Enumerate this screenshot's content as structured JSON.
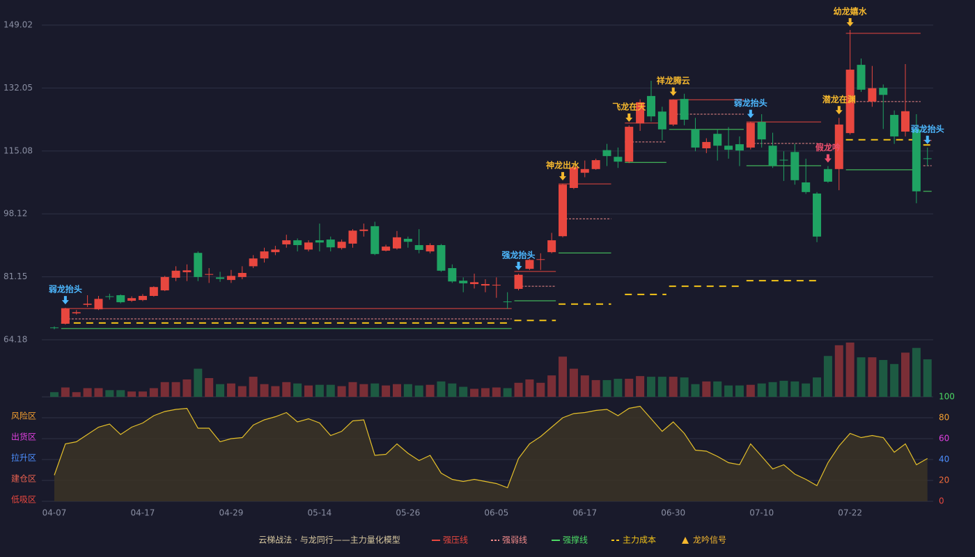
{
  "chart_data": {
    "type": "candlestick",
    "categories": [
      "04-07",
      null,
      null,
      null,
      null,
      null,
      null,
      null,
      "04-17",
      null,
      null,
      null,
      null,
      null,
      null,
      null,
      "04-29",
      null,
      null,
      null,
      null,
      null,
      null,
      null,
      "05-14",
      null,
      null,
      null,
      null,
      null,
      null,
      null,
      "05-26",
      null,
      null,
      null,
      null,
      null,
      null,
      null,
      "06-05",
      null,
      null,
      null,
      null,
      null,
      null,
      null,
      "06-17",
      null,
      null,
      null,
      null,
      null,
      null,
      null,
      "06-30",
      null,
      null,
      null,
      null,
      null,
      null,
      null,
      "07-10",
      null,
      null,
      null,
      null,
      null,
      null,
      null,
      "07-22",
      null,
      null,
      null,
      null,
      null,
      null,
      null
    ],
    "ylim": [
      64.18,
      149.02
    ],
    "yticks": [
      64.18,
      81.15,
      98.12,
      115.08,
      132.05,
      149.02
    ],
    "grid": true,
    "up_color": "#e8473f",
    "down_color": "#1fa363",
    "open": [
      67.5,
      68.5,
      71.3,
      73.6,
      72.4,
      75.9,
      76.2,
      74.7,
      74.9,
      76.0,
      77.5,
      80.9,
      82.4,
      87.6,
      81.7,
      81.0,
      80.3,
      81.1,
      84.0,
      86.1,
      87.8,
      89.9,
      91.0,
      88.5,
      91.0,
      91.2,
      88.9,
      90.1,
      93.5,
      94.8,
      88.2,
      88.8,
      91.4,
      89.7,
      88.0,
      89.7,
      83.5,
      80.1,
      79.2,
      78.8,
      78.9,
      74.5,
      77.9,
      83.3,
      85.8,
      87.8,
      92.1,
      105.1,
      109.2,
      110.2,
      115.3,
      113.5,
      112.2,
      122.5,
      129.9,
      125.7,
      122.2,
      129.1,
      120.9,
      115.8,
      119.7,
      116.5,
      116.9,
      116.0,
      122.9,
      116.5,
      112.7,
      114.8,
      106.6,
      103.6,
      110.2,
      110.2,
      119.9,
      138.3,
      128.4,
      132.1,
      124.8,
      120.3,
      120.9,
      113.1
    ],
    "high": [
      67.8,
      72.8,
      72.2,
      76.2,
      76.0,
      76.6,
      76.4,
      75.9,
      76.5,
      78.6,
      81.4,
      84.0,
      84.5,
      88.0,
      83.5,
      82.5,
      83.0,
      84.0,
      87.0,
      89.0,
      89.5,
      92.5,
      91.5,
      91.0,
      95.5,
      92.0,
      91.2,
      94.0,
      95.5,
      96.0,
      89.8,
      93.5,
      92.0,
      94.0,
      90.2,
      90.0,
      84.5,
      81.0,
      82.0,
      80.5,
      81.0,
      77.0,
      82.0,
      86.0,
      87.5,
      93.0,
      106.2,
      111.0,
      112.5,
      113.0,
      117.0,
      116.0,
      122.0,
      129.0,
      134.0,
      127.0,
      129.0,
      130.5,
      124.0,
      118.5,
      121.0,
      121.5,
      119.0,
      123.0,
      125.0,
      120.0,
      115.0,
      117.0,
      113.0,
      104.0,
      111.0,
      124.0,
      147.7,
      140.0,
      138.0,
      133.0,
      126.0,
      138.5,
      125.0,
      116.0
    ],
    "low": [
      67.0,
      68.3,
      71.0,
      73.0,
      72.2,
      75.0,
      74.0,
      74.4,
      74.6,
      75.8,
      77.3,
      80.0,
      80.0,
      80.0,
      79.5,
      79.8,
      79.5,
      80.5,
      83.5,
      85.0,
      87.0,
      89.0,
      88.0,
      88.0,
      88.0,
      88.0,
      88.5,
      89.0,
      92.0,
      87.0,
      88.0,
      88.5,
      89.0,
      87.5,
      87.5,
      82.5,
      79.5,
      77.0,
      78.0,
      77.0,
      75.5,
      72.5,
      77.5,
      83.0,
      83.0,
      87.5,
      91.8,
      104.8,
      108.0,
      110.0,
      111.0,
      110.5,
      111.8,
      120.5,
      123.0,
      118.0,
      121.8,
      122.0,
      115.0,
      114.5,
      112.5,
      113.0,
      111.0,
      115.5,
      116.0,
      110.5,
      107.0,
      106.0,
      103.5,
      90.5,
      106.5,
      104.5,
      119.5,
      131.0,
      127.0,
      121.0,
      117.0,
      119.0,
      101.0,
      111.0
    ],
    "close": [
      67.4,
      72.6,
      71.6,
      73.9,
      75.2,
      75.8,
      74.3,
      75.4,
      76.0,
      78.4,
      81.1,
      82.8,
      82.9,
      81.1,
      81.9,
      80.6,
      81.4,
      82.2,
      86.1,
      88.0,
      88.5,
      91.0,
      89.7,
      90.4,
      90.4,
      89.1,
      90.6,
      93.6,
      93.9,
      87.3,
      89.3,
      91.8,
      90.6,
      88.4,
      89.7,
      82.8,
      79.9,
      79.4,
      79.7,
      79.2,
      79.0,
      74.4,
      81.7,
      85.7,
      85.9,
      91.0,
      106.0,
      110.7,
      110.2,
      112.6,
      113.7,
      112.2,
      121.6,
      128.2,
      124.4,
      120.9,
      128.8,
      123.5,
      116.0,
      117.5,
      116.5,
      115.4,
      115.2,
      122.7,
      118.2,
      111.1,
      112.6,
      107.2,
      104.0,
      92.0,
      106.8,
      122.2,
      137.0,
      131.6,
      132.0,
      130.2,
      119.0,
      125.8,
      104.2,
      113.0
    ],
    "volume": [
      7,
      14,
      7,
      13,
      13,
      10,
      10,
      8,
      8,
      13,
      22,
      22,
      26,
      42,
      28,
      19,
      20,
      16,
      30,
      19,
      16,
      22,
      20,
      17,
      18,
      18,
      16,
      22,
      19,
      20,
      17,
      19,
      19,
      17,
      18,
      23,
      20,
      15,
      12,
      13,
      14,
      13,
      21,
      26,
      21,
      32,
      60,
      42,
      32,
      25,
      25,
      27,
      27,
      31,
      30,
      30,
      30,
      29,
      19,
      23,
      23,
      17,
      17,
      18,
      20,
      22,
      24,
      23,
      20,
      29,
      61,
      77,
      81,
      59,
      59,
      55,
      49,
      66,
      73,
      56
    ],
    "indicator": {
      "color": "#e5c02a",
      "values": [
        25,
        55,
        57,
        64,
        71,
        74,
        64,
        71,
        75,
        82,
        86,
        88,
        89,
        70,
        70,
        57,
        60,
        61,
        73,
        78,
        81,
        85,
        76,
        79,
        75,
        63,
        67,
        77,
        78,
        44,
        45,
        55,
        46,
        39,
        44,
        27,
        21,
        19,
        21,
        19,
        17,
        13,
        41,
        55,
        62,
        71,
        80,
        84,
        85,
        87,
        88,
        82,
        89,
        91,
        79,
        67,
        76,
        65,
        49,
        48,
        43,
        37,
        35,
        55,
        43,
        31,
        35,
        26,
        21,
        15,
        37,
        53,
        65,
        61,
        63,
        61,
        47,
        55,
        35,
        41
      ],
      "ylim": [
        0,
        100
      ],
      "yticks": [
        0,
        20,
        40,
        60,
        80,
        100
      ],
      "tick_colors": [
        "#e8473f",
        "#f06a3a",
        "#4d8fff",
        "#e040e0",
        "#f5a030",
        "#4cd964"
      ],
      "zones": [
        {
          "label": "风险区",
          "value": 80,
          "color": "#f5a030"
        },
        {
          "label": "出货区",
          "value": 60,
          "color": "#e040e0"
        },
        {
          "label": "拉升区",
          "value": 40,
          "color": "#4d8fff"
        },
        {
          "label": "建仓区",
          "value": 20,
          "color": "#e8604f"
        },
        {
          "label": "低吸区",
          "value": 0,
          "color": "#e8473f"
        }
      ]
    },
    "levels": [
      {
        "name": "强压线",
        "color": "#e8473f",
        "dash": "solid",
        "segments": [
          {
            "start": 1,
            "end": 41,
            "value": 72.6
          },
          {
            "start": 42,
            "end": 45,
            "value": 82.6
          },
          {
            "start": 46,
            "end": 50,
            "value": 106.2
          },
          {
            "start": 52,
            "end": 55,
            "value": 122.6
          },
          {
            "start": 56,
            "end": 62,
            "value": 128.9
          },
          {
            "start": 63,
            "end": 69,
            "value": 122.9
          },
          {
            "start": 72,
            "end": 78,
            "value": 146.8
          },
          {
            "start": 79,
            "end": 79,
            "value": 117.9
          }
        ]
      },
      {
        "name": "强弱线",
        "color": "#f08a8a",
        "dash": "fine",
        "segments": [
          {
            "start": 1,
            "end": 41,
            "value": 69.8
          },
          {
            "start": 42,
            "end": 45,
            "value": 78.6
          },
          {
            "start": 46,
            "end": 50,
            "value": 96.8
          },
          {
            "start": 52,
            "end": 55,
            "value": 117.5
          },
          {
            "start": 56,
            "end": 62,
            "value": 125.0
          },
          {
            "start": 63,
            "end": 69,
            "value": 117.1
          },
          {
            "start": 72,
            "end": 78,
            "value": 128.4
          },
          {
            "start": 79,
            "end": 79,
            "value": 111.1
          }
        ]
      },
      {
        "name": "强撑线",
        "color": "#4cd964",
        "dash": "solid",
        "segments": [
          {
            "start": 1,
            "end": 41,
            "value": 67.2
          },
          {
            "start": 42,
            "end": 45,
            "value": 74.7
          },
          {
            "start": 46,
            "end": 50,
            "value": 87.6
          },
          {
            "start": 52,
            "end": 55,
            "value": 112.0
          },
          {
            "start": 56,
            "end": 62,
            "value": 120.9
          },
          {
            "start": 63,
            "end": 69,
            "value": 111.1
          },
          {
            "start": 72,
            "end": 78,
            "value": 110.0
          },
          {
            "start": 79,
            "end": 79,
            "value": 104.2
          }
        ]
      },
      {
        "name": "主力成本",
        "color": "#f5c518",
        "dash": "coarse",
        "segments": [
          {
            "start": 1,
            "end": 41,
            "value": 68.7
          },
          {
            "start": 42,
            "end": 45,
            "value": 69.4
          },
          {
            "start": 46,
            "end": 50,
            "value": 73.8
          },
          {
            "start": 52,
            "end": 55,
            "value": 76.4
          },
          {
            "start": 56,
            "end": 62,
            "value": 78.6
          },
          {
            "start": 63,
            "end": 69,
            "value": 80.1
          },
          {
            "start": 72,
            "end": 78,
            "value": 118.1
          },
          {
            "start": 79,
            "end": 79,
            "value": 116.7
          }
        ]
      }
    ],
    "signal_name": "龙吟信号",
    "signal_color": "#f5b82e",
    "signals": [
      {
        "label": "弱龙抬头",
        "index": 1,
        "color": "#4db8ff"
      },
      {
        "label": "强龙抬头",
        "index": 42,
        "color": "#4db8ff"
      },
      {
        "label": "神龙出水",
        "index": 46,
        "color": "#f5b82e"
      },
      {
        "label": "飞龙在天",
        "index": 52,
        "color": "#f5b82e"
      },
      {
        "label": "祥龙腾云",
        "index": 56,
        "color": "#f5b82e"
      },
      {
        "label": "弱龙抬头",
        "index": 63,
        "color": "#4db8ff"
      },
      {
        "label": "假龙吟",
        "index": 70,
        "color": "#f0506e"
      },
      {
        "label": "潜龙在渊",
        "index": 71,
        "color": "#f5b82e"
      },
      {
        "label": "幼龙嬉水",
        "index": 72,
        "color": "#f5b82e"
      },
      {
        "label": "弱龙抬头",
        "index": 79,
        "color": "#4db8ff"
      }
    ],
    "legend_title": "云梯战法 · 与龙同行——主力量化模型"
  }
}
